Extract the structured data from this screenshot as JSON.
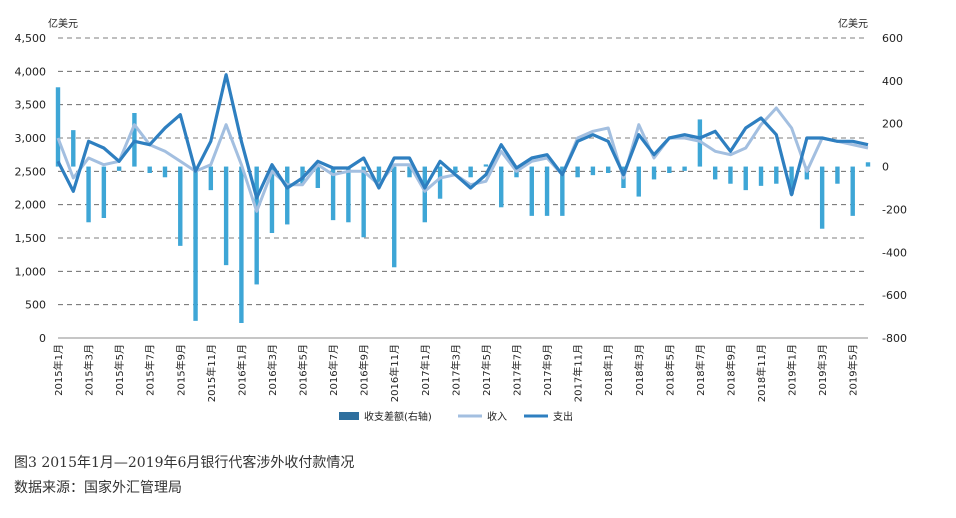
{
  "chart_data": {
    "type": "bar+line",
    "left_unit": "亿美元",
    "right_unit": "亿美元",
    "left_ticks": [
      "4,500",
      "4,000",
      "3,500",
      "3,000",
      "2,500",
      "2,000",
      "1,500",
      "1,000",
      "500",
      "0"
    ],
    "right_ticks": [
      "600",
      "400",
      "200",
      "0",
      "-200",
      "-400",
      "-600",
      "-800"
    ],
    "ylim_left": [
      0,
      4500
    ],
    "ylim_right": [
      -800,
      600
    ],
    "x_tick_labels": [
      "2015年1月",
      "2015年3月",
      "2015年5月",
      "2015年7月",
      "2015年9月",
      "2015年11月",
      "2016年1月",
      "2016年3月",
      "2016年5月",
      "2016年7月",
      "2016年9月",
      "2016年11月",
      "2017年1月",
      "2017年3月",
      "2017年5月",
      "2017年7月",
      "2017年9月",
      "2017年11月",
      "2018年1月",
      "2018年3月",
      "2018年5月",
      "2018年7月",
      "2018年9月",
      "2018年11月",
      "2019年1月",
      "2019年3月",
      "2019年5月"
    ],
    "categories": [
      "2015-01",
      "2015-02",
      "2015-03",
      "2015-04",
      "2015-05",
      "2015-06",
      "2015-07",
      "2015-08",
      "2015-09",
      "2015-10",
      "2015-11",
      "2015-12",
      "2016-01",
      "2016-02",
      "2016-03",
      "2016-04",
      "2016-05",
      "2016-06",
      "2016-07",
      "2016-08",
      "2016-09",
      "2016-10",
      "2016-11",
      "2016-12",
      "2017-01",
      "2017-02",
      "2017-03",
      "2017-04",
      "2017-05",
      "2017-06",
      "2017-07",
      "2017-08",
      "2017-09",
      "2017-10",
      "2017-11",
      "2017-12",
      "2018-01",
      "2018-02",
      "2018-03",
      "2018-04",
      "2018-05",
      "2018-06",
      "2018-07",
      "2018-08",
      "2018-09",
      "2018-10",
      "2018-11",
      "2018-12",
      "2019-01",
      "2019-02",
      "2019-03",
      "2019-04",
      "2019-05",
      "2019-06"
    ],
    "grid": true,
    "legend_position": "bottom-center",
    "series": [
      {
        "name": "收支差额(右轴)",
        "type": "bar",
        "axis": "right",
        "color": "#3ea6d6",
        "values": [
          370,
          170,
          -260,
          -240,
          -20,
          250,
          -30,
          -50,
          -370,
          -720,
          -110,
          -460,
          -730,
          -550,
          -310,
          -270,
          -80,
          -100,
          -250,
          -260,
          -330,
          -90,
          -470,
          -50,
          -260,
          -150,
          -30,
          -50,
          10,
          -190,
          -50,
          -230,
          -230,
          -230,
          -50,
          -40,
          -30,
          -100,
          -140,
          -60,
          -30,
          -20,
          220,
          -60,
          -80,
          -110,
          -90,
          -80,
          -130,
          -60,
          -290,
          -80,
          -230,
          20
        ]
      },
      {
        "name": "收入",
        "type": "line",
        "axis": "left",
        "color": "#a3bfe0",
        "values": [
          3000,
          2400,
          2700,
          2600,
          2650,
          3200,
          2900,
          2800,
          2650,
          2500,
          2600,
          3200,
          2600,
          1900,
          2500,
          2300,
          2300,
          2600,
          2450,
          2500,
          2500,
          2300,
          2600,
          2600,
          2200,
          2400,
          2450,
          2300,
          2350,
          2800,
          2500,
          2650,
          2700,
          2450,
          3000,
          3100,
          3150,
          2400,
          3200,
          2700,
          3000,
          3000,
          2950,
          2800,
          2750,
          2850,
          3200,
          3450,
          3150,
          2500,
          3000,
          2950,
          2900,
          2850
        ]
      },
      {
        "name": "支出",
        "type": "line",
        "axis": "left",
        "color": "#2e7fc0",
        "values": [
          2650,
          2200,
          2950,
          2850,
          2650,
          2950,
          2900,
          3150,
          3350,
          2500,
          2950,
          3950,
          2950,
          2100,
          2600,
          2250,
          2400,
          2650,
          2550,
          2550,
          2700,
          2250,
          2700,
          2700,
          2250,
          2650,
          2450,
          2250,
          2450,
          2900,
          2550,
          2700,
          2750,
          2450,
          2950,
          3050,
          2950,
          2450,
          3050,
          2750,
          3000,
          3050,
          3000,
          3100,
          2800,
          3150,
          3300,
          3050,
          2150,
          3000,
          3000,
          2950,
          2950,
          2900
        ]
      }
    ]
  },
  "legend": {
    "bar_label": "收支差额(右轴)",
    "income_label": "收入",
    "expense_label": "支出"
  },
  "caption": {
    "title": "图3   2015年1月—2019年6月银行代客涉外收付款情况",
    "source": "数据来源：国家外汇管理局"
  }
}
